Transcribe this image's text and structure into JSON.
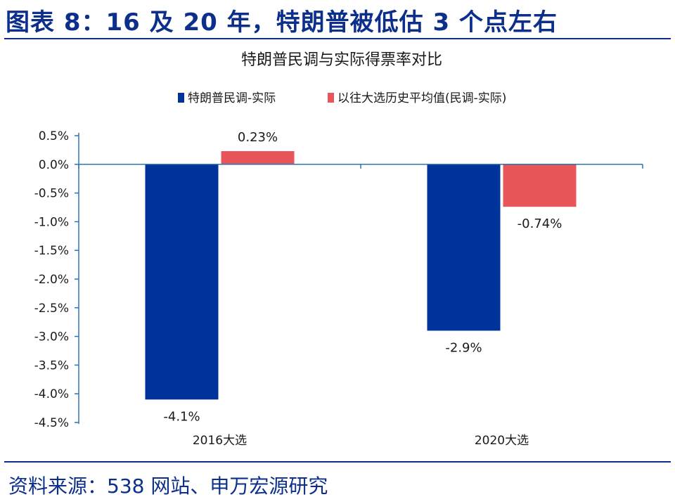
{
  "figure": {
    "title": "图表 8：16 及 20 年，特朗普被低估 3 个点左右",
    "source": "资料来源：538 网站、申万宏源研究"
  },
  "chart_data": {
    "type": "bar",
    "title": "特朗普民调与实际得票率对比",
    "categories": [
      "2016大选",
      "2020大选"
    ],
    "series": [
      {
        "name": "特朗普民调-实际",
        "color": "#003399",
        "values": [
          -4.1,
          -2.9
        ],
        "labels": [
          "-4.1%",
          "-2.9%"
        ]
      },
      {
        "name": "以往大选历史平均值(民调-实际)",
        "color": "#e8565a",
        "values": [
          0.23,
          -0.74
        ],
        "labels": [
          "0.23%",
          "-0.74%"
        ]
      }
    ],
    "yticks": [
      "0.5%",
      "0.0%",
      "-0.5%",
      "-1.0%",
      "-1.5%",
      "-2.0%",
      "-2.5%",
      "-3.0%",
      "-3.5%",
      "-4.0%",
      "-4.5%"
    ],
    "ylim": [
      -4.5,
      0.5
    ],
    "xlabel": "",
    "ylabel": "",
    "legend_position": "top",
    "grid": false
  },
  "colors": {
    "title": "#0b2f8a",
    "axis": "#2e75b6",
    "text": "#1a1a1a"
  }
}
